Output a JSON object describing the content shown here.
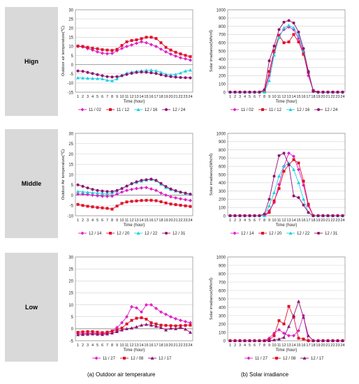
{
  "rows": [
    {
      "label": "Hign"
    },
    {
      "label": "Middle"
    },
    {
      "label": "Low"
    }
  ],
  "captions": {
    "left": "(a) Outdoor air temperature",
    "right": "(b) Solar irradiance"
  },
  "chart_data": [
    {
      "type": "line",
      "row": "Hign",
      "panel": "temperature",
      "xlabel": "Time (hour)",
      "ylabel": "Outdoor air temperature(℃)",
      "ylim": [
        -15,
        30
      ],
      "yticks": [
        -15,
        -10,
        -5,
        0,
        5,
        10,
        15,
        20,
        25,
        30
      ],
      "x": [
        1,
        2,
        3,
        4,
        5,
        6,
        7,
        8,
        9,
        10,
        11,
        12,
        13,
        14,
        15,
        16,
        17,
        18,
        19,
        20,
        21,
        22,
        23,
        24
      ],
      "grid": true,
      "legend": "bottom",
      "series": [
        {
          "name": "11 / 02",
          "color": "#e020c8",
          "values": [
            10,
            9.7,
            8.8,
            8,
            7,
            6.3,
            6,
            6.2,
            7.6,
            8.9,
            10,
            10.8,
            11.7,
            12.5,
            12,
            11,
            10,
            8.5,
            7,
            5.8,
            4.7,
            3.8,
            3.2,
            2.5
          ]
        },
        {
          "name": "11 / 12",
          "color": "#e0102a",
          "values": [
            10.2,
            10,
            9.5,
            9,
            8.7,
            8.2,
            8,
            7.8,
            8.4,
            10.5,
            12.5,
            13.2,
            13.6,
            14.2,
            15,
            15,
            14.3,
            12,
            9.5,
            8,
            6.8,
            5.9,
            5.1,
            4.4
          ]
        },
        {
          "name": "12 / 16",
          "color": "#20d0e0",
          "values": [
            -7.2,
            -7.3,
            -7.4,
            -7.5,
            -7.6,
            -7.7,
            -8.5,
            -8.8,
            -7.7,
            -6,
            -4.5,
            -4,
            -3.6,
            -3.3,
            -3.1,
            -3,
            -3.3,
            -4.2,
            -5.2,
            -5.6,
            -5.3,
            -4.5,
            -3.5,
            -3
          ]
        },
        {
          "name": "12 / 24",
          "color": "#901070",
          "values": [
            -3.4,
            -3.6,
            -4.2,
            -4.8,
            -5.4,
            -6,
            -6.5,
            -6.7,
            -6.5,
            -6,
            -5.3,
            -4.7,
            -4.2,
            -4,
            -4.1,
            -4.4,
            -4.8,
            -5.5,
            -6.1,
            -6.5,
            -6.8,
            -7,
            -7.1,
            -7.2
          ]
        }
      ]
    },
    {
      "type": "line",
      "row": "Hign",
      "panel": "solar",
      "xlabel": "Time (hour)",
      "ylabel": "Solar irradiance(Wh/㎡)",
      "ylim": [
        0,
        1000
      ],
      "yticks": [
        0,
        100,
        200,
        300,
        400,
        500,
        600,
        700,
        800,
        900,
        1000
      ],
      "x": [
        1,
        2,
        3,
        4,
        5,
        6,
        7,
        8,
        9,
        10,
        11,
        12,
        13,
        14,
        15,
        16,
        17,
        18,
        19,
        20,
        21,
        22,
        23,
        24
      ],
      "grid": true,
      "legend": "bottom",
      "series": [
        {
          "name": "11 / 02",
          "color": "#e020c8",
          "values": [
            0,
            0,
            0,
            0,
            0,
            0,
            0,
            5,
            200,
            480,
            690,
            760,
            790,
            760,
            650,
            480,
            200,
            20,
            0,
            0,
            0,
            0,
            0,
            0
          ]
        },
        {
          "name": "11 / 12",
          "color": "#e0102a",
          "values": [
            0,
            0,
            0,
            0,
            0,
            0,
            0,
            10,
            250,
            500,
            690,
            600,
            610,
            700,
            610,
            460,
            240,
            20,
            0,
            0,
            0,
            0,
            0,
            0
          ]
        },
        {
          "name": "12 / 16",
          "color": "#20d0e0",
          "values": [
            0,
            0,
            0,
            0,
            0,
            0,
            0,
            0,
            140,
            450,
            660,
            780,
            810,
            780,
            690,
            500,
            260,
            10,
            0,
            0,
            0,
            0,
            0,
            0
          ]
        },
        {
          "name": "12 / 24",
          "color": "#901070",
          "values": [
            0,
            0,
            0,
            0,
            0,
            0,
            0,
            30,
            380,
            560,
            760,
            850,
            870,
            840,
            730,
            530,
            250,
            10,
            0,
            0,
            0,
            0,
            0,
            0
          ]
        }
      ]
    },
    {
      "type": "line",
      "row": "Middle",
      "panel": "temperature",
      "xlabel": "Time (hour)",
      "ylabel": "Outdoor Air temperature(℃)",
      "ylim": [
        -10,
        30
      ],
      "yticks": [
        -10,
        -5,
        0,
        5,
        10,
        15,
        20,
        25,
        30
      ],
      "x": [
        1,
        2,
        3,
        4,
        5,
        6,
        7,
        8,
        9,
        10,
        11,
        12,
        13,
        14,
        15,
        16,
        17,
        18,
        19,
        20,
        21,
        22,
        23,
        24
      ],
      "grid": true,
      "legend": "bottom",
      "series": [
        {
          "name": "12 / 14",
          "color": "#e020c8",
          "values": [
            0.5,
            0.5,
            0.3,
            0,
            -0.3,
            -0.5,
            -0.6,
            -0.5,
            0.5,
            1.5,
            2.3,
            2.8,
            3.2,
            3.5,
            3.7,
            3,
            2.3,
            1,
            0,
            -0.8,
            -1.3,
            -1.8,
            -2.2,
            -2.6
          ]
        },
        {
          "name": "12 / 20",
          "color": "#e0102a",
          "values": [
            -4.5,
            -5,
            -5.4,
            -5.7,
            -6,
            -6.2,
            -6.4,
            -6.8,
            -5.3,
            -4,
            -3.3,
            -3,
            -2.8,
            -2.6,
            -2.5,
            -2.5,
            -2.7,
            -3.2,
            -3.8,
            -4.3,
            -4.6,
            -4.9,
            -5.2,
            -5.5
          ]
        },
        {
          "name": "12 / 22",
          "color": "#20d0e0",
          "values": [
            1.8,
            1.6,
            1.4,
            1.2,
            1,
            0.9,
            0.8,
            1,
            2,
            3.3,
            4.5,
            5.5,
            6.2,
            6.8,
            7.3,
            7.6,
            7,
            5.3,
            3.7,
            2.7,
            2,
            1.4,
            0.9,
            0.4
          ]
        },
        {
          "name": "12 / 31",
          "color": "#901070",
          "values": [
            5,
            4.3,
            3.5,
            2.8,
            2.3,
            2,
            1.8,
            1.8,
            2.3,
            3.2,
            4.4,
            5.6,
            6.5,
            7.2,
            7.5,
            7.8,
            7.2,
            5.7,
            4.2,
            3,
            2.2,
            1.5,
            1,
            0.5
          ]
        }
      ]
    },
    {
      "type": "line",
      "row": "Middle",
      "panel": "solar",
      "xlabel": "Time (hour)",
      "ylabel": "Solar irradiance(Wh/㎡)",
      "ylim": [
        0,
        1000
      ],
      "yticks": [
        0,
        100,
        200,
        300,
        400,
        500,
        600,
        700,
        800,
        900,
        1000
      ],
      "x": [
        1,
        2,
        3,
        4,
        5,
        6,
        7,
        8,
        9,
        10,
        11,
        12,
        13,
        14,
        15,
        16,
        17,
        18,
        19,
        20,
        21,
        22,
        23,
        24
      ],
      "grid": true,
      "legend": "bottom",
      "series": [
        {
          "name": "12 / 14",
          "color": "#e020c8",
          "values": [
            0,
            0,
            0,
            0,
            0,
            0,
            0,
            0,
            60,
            160,
            380,
            600,
            760,
            720,
            560,
            370,
            120,
            0,
            0,
            0,
            0,
            0,
            0,
            0
          ]
        },
        {
          "name": "12 / 20",
          "color": "#e0102a",
          "values": [
            0,
            0,
            0,
            0,
            0,
            0,
            0,
            0,
            40,
            180,
            330,
            540,
            620,
            680,
            640,
            420,
            140,
            0,
            0,
            0,
            0,
            0,
            0,
            0
          ]
        },
        {
          "name": "12 / 22",
          "color": "#20d0e0",
          "values": [
            0,
            0,
            0,
            0,
            0,
            0,
            0,
            0,
            120,
            280,
            480,
            600,
            640,
            560,
            400,
            200,
            40,
            0,
            0,
            0,
            0,
            0,
            0,
            0
          ]
        },
        {
          "name": "12 / 31",
          "color": "#901070",
          "values": [
            0,
            0,
            0,
            0,
            0,
            0,
            0,
            20,
            200,
            480,
            730,
            760,
            620,
            240,
            220,
            130,
            40,
            0,
            0,
            0,
            0,
            0,
            0,
            0
          ]
        }
      ]
    },
    {
      "type": "line",
      "row": "Low",
      "panel": "temperature",
      "xlabel": "Time (hour)",
      "ylabel": "",
      "ylim": [
        -5,
        30
      ],
      "yticks": [
        -5,
        0,
        5,
        10,
        15,
        20,
        25,
        30
      ],
      "x": [
        1,
        2,
        3,
        4,
        5,
        6,
        7,
        8,
        9,
        10,
        11,
        12,
        13,
        14,
        15,
        16,
        17,
        18,
        19,
        20,
        21,
        22,
        23,
        24
      ],
      "grid": true,
      "legend": "bottom",
      "series": [
        {
          "name": "11 / 27",
          "color": "#e020c8",
          "values": [
            -2,
            -2,
            -1.9,
            -1.8,
            -2,
            -2.1,
            -1.8,
            -1,
            0.5,
            2.5,
            5,
            9.2,
            8.7,
            7,
            10,
            10,
            8.5,
            7,
            6,
            5,
            4.2,
            3.5,
            3,
            2.5
          ]
        },
        {
          "name": "12 / 08",
          "color": "#e0102a",
          "values": [
            -1.5,
            -1.3,
            -1.2,
            -1.2,
            -1.4,
            -1.6,
            -1.4,
            -1,
            -0.5,
            0.3,
            2,
            3.5,
            4.4,
            4.6,
            4,
            2.5,
            2,
            1.5,
            1.4,
            1.3,
            1.2,
            1.3,
            1.4,
            1.5
          ]
        },
        {
          "name": "12 / 17",
          "color": "#901070",
          "values": [
            -2.5,
            -2.4,
            -2.3,
            -2.2,
            -2.3,
            -2.4,
            -2.2,
            -1.8,
            -1.2,
            -0.5,
            0,
            0.3,
            0.8,
            1.5,
            1.8,
            1.5,
            1,
            0.5,
            -0.5,
            0.2,
            0,
            0.5,
            -0.2,
            -1.5
          ]
        }
      ]
    },
    {
      "type": "line",
      "row": "Low",
      "panel": "solar",
      "xlabel": "Time (hour)",
      "ylabel": "Solar irradiance(Wh/㎡)",
      "ylim": [
        0,
        1000
      ],
      "yticks": [
        0,
        100,
        200,
        300,
        400,
        500,
        600,
        700,
        800,
        900,
        1000
      ],
      "x": [
        1,
        2,
        3,
        4,
        5,
        6,
        7,
        8,
        9,
        10,
        11,
        12,
        13,
        14,
        15,
        16,
        17,
        18,
        19,
        20,
        21,
        22,
        23,
        24
      ],
      "grid": true,
      "legend": "bottom",
      "series": [
        {
          "name": "11 / 27",
          "color": "#e020c8",
          "values": [
            0,
            0,
            0,
            0,
            0,
            0,
            0,
            0,
            30,
            90,
            130,
            90,
            60,
            60,
            120,
            300,
            0,
            0,
            0,
            0,
            0,
            0,
            0,
            0
          ]
        },
        {
          "name": "12 / 08",
          "color": "#e0102a",
          "values": [
            0,
            0,
            0,
            0,
            0,
            0,
            0,
            0,
            10,
            60,
            240,
            200,
            410,
            280,
            30,
            20,
            0,
            0,
            0,
            0,
            0,
            0,
            0,
            0
          ]
        },
        {
          "name": "12 / 17",
          "color": "#901070",
          "values": [
            0,
            0,
            0,
            0,
            0,
            0,
            0,
            0,
            0,
            10,
            20,
            40,
            170,
            300,
            470,
            280,
            60,
            0,
            0,
            0,
            0,
            0,
            0,
            0
          ]
        }
      ]
    }
  ]
}
